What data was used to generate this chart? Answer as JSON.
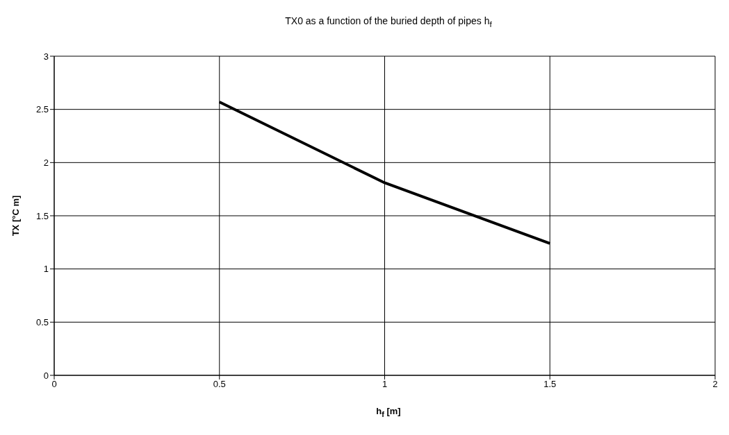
{
  "chart_data": {
    "type": "line",
    "title": "TX0 as a function of the buried depth of pipes h$_{f}$",
    "xlabel": "h$_{f}$ [m]",
    "ylabel": "TX [°C m]",
    "x": [
      0.5,
      1,
      1.5
    ],
    "series": [
      {
        "color": "#000000",
        "values": [
          2.57,
          1.81,
          1.24
        ]
      }
    ],
    "xlim": [
      0,
      2
    ],
    "xticks": [
      0,
      0.5,
      1,
      1.5,
      2
    ],
    "ylim": [
      0,
      3
    ],
    "yticks": [
      0,
      0.5,
      1,
      1.5,
      2,
      2.5,
      3
    ],
    "grid": true,
    "line_style": "solid"
  }
}
